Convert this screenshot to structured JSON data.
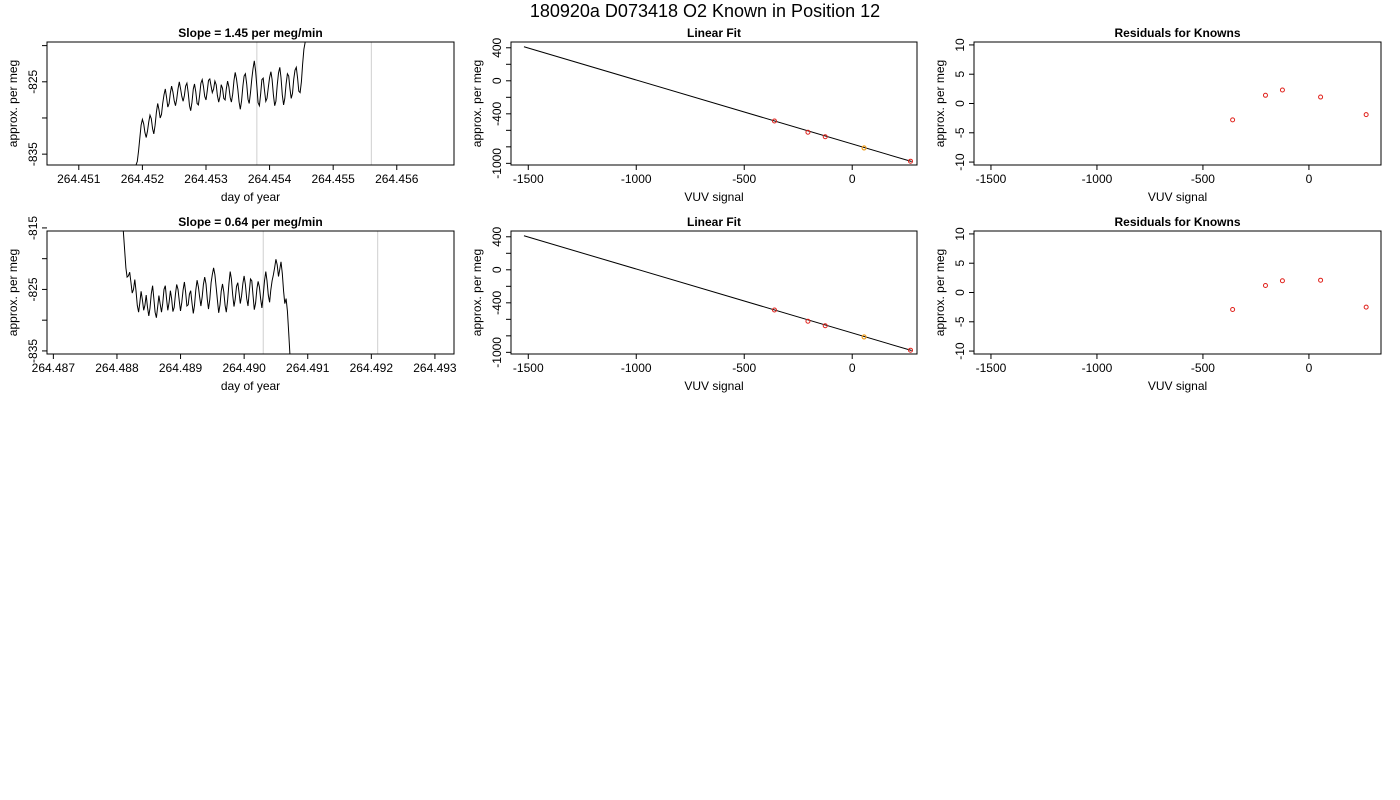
{
  "page_title": "180920a     D073418   O2 Known in Position  12",
  "chart_data": [
    {
      "id": "ts1",
      "type": "line",
      "title": "Slope =  1.45  per meg/min",
      "xlabel": "day of year",
      "ylabel": "approx. per meg",
      "xlim": [
        264.4505,
        264.4569
      ],
      "ylim": [
        -836.5,
        -819.5
      ],
      "x_ticks": [
        264.451,
        264.452,
        264.453,
        264.454,
        264.455,
        264.456
      ],
      "x_tick_labels": [
        "264.451",
        "264.452",
        "264.453",
        "264.454",
        "264.455",
        "264.456"
      ],
      "y_ticks": [
        -835,
        -830,
        -825,
        -820
      ],
      "y_tick_labels": [
        "-835",
        "",
        "-825",
        ""
      ],
      "vlines": [
        264.4538,
        264.4556
      ],
      "series_x_start": 264.4519,
      "series_x_step": 2e-05,
      "series_values": [
        -836.5,
        -836.0,
        -834.5,
        -832.8,
        -831.0,
        -830.2,
        -830.8,
        -832.0,
        -832.7,
        -831.8,
        -830.5,
        -829.6,
        -830.1,
        -831.5,
        -832.2,
        -831.0,
        -829.2,
        -828.0,
        -828.8,
        -830.0,
        -829.5,
        -828.0,
        -826.8,
        -826.0,
        -827.2,
        -828.5,
        -828.0,
        -826.5,
        -825.6,
        -826.4,
        -827.6,
        -828.3,
        -827.4,
        -826.0,
        -825.0,
        -825.9,
        -827.0,
        -827.7,
        -826.9,
        -825.6,
        -825.2,
        -826.5,
        -828.3,
        -829.0,
        -827.8,
        -826.0,
        -825.3,
        -826.4,
        -828.0,
        -828.2,
        -826.9,
        -825.2,
        -824.7,
        -825.6,
        -827.0,
        -827.5,
        -826.2,
        -824.8,
        -824.6,
        -825.6,
        -826.5,
        -826.0,
        -824.9,
        -825.4,
        -826.9,
        -827.8,
        -827.0,
        -825.4,
        -825.9,
        -827.3,
        -827.5,
        -826.0,
        -824.9,
        -825.7,
        -827.2,
        -827.8,
        -826.7,
        -824.8,
        -823.7,
        -824.6,
        -826.0,
        -827.8,
        -828.8,
        -827.6,
        -825.6,
        -824.2,
        -823.9,
        -825.3,
        -827.4,
        -828.0,
        -826.5,
        -824.6,
        -823.2,
        -822.1,
        -823.5,
        -825.7,
        -827.9,
        -828.3,
        -826.6,
        -824.7,
        -824.5,
        -826.2,
        -827.7,
        -827.3,
        -825.8,
        -824.4,
        -823.6,
        -824.7,
        -826.8,
        -828.3,
        -827.7,
        -825.5,
        -823.8,
        -823.0,
        -824.4,
        -826.8,
        -828.2,
        -827.3,
        -825.3,
        -823.9,
        -824.2,
        -825.9,
        -827.3,
        -826.6,
        -824.7,
        -823.4,
        -823.0,
        -824.5,
        -826.3,
        -826.5,
        -825.0,
        -822.6,
        -820.5,
        -819.5
      ]
    },
    {
      "id": "fit1",
      "type": "scatter",
      "title": "Linear Fit",
      "xlabel": "VUV signal",
      "ylabel": "approx. per meg",
      "xlim": [
        -1580,
        300
      ],
      "ylim": [
        -1020,
        470
      ],
      "x_ticks": [
        -1500,
        -1000,
        -500,
        0
      ],
      "x_tick_labels": [
        "-1500",
        "-1000",
        "-500",
        "0"
      ],
      "y_ticks": [
        -1000,
        -800,
        -600,
        -400,
        -200,
        0,
        200,
        400
      ],
      "y_tick_labels": [
        "-1000",
        "",
        "",
        "-400",
        "",
        "0",
        "",
        "400"
      ],
      "fit_line": [
        [
          -1520,
          412
        ],
        [
          275,
          -978
        ]
      ],
      "red_points": [
        [
          -360,
          -487
        ],
        [
          -205,
          -623
        ],
        [
          -125,
          -678
        ],
        [
          270,
          -974
        ]
      ],
      "orange_points": [
        [
          55,
          -813
        ]
      ]
    },
    {
      "id": "res1",
      "type": "scatter",
      "title": "Residuals for Knowns",
      "xlabel": "VUV signal",
      "ylabel": "approx. per meg",
      "xlim": [
        -1580,
        340
      ],
      "ylim": [
        -10.5,
        10.5
      ],
      "x_ticks": [
        -1500,
        -1000,
        -500,
        0
      ],
      "x_tick_labels": [
        "-1500",
        "-1000",
        "-500",
        "0"
      ],
      "y_ticks": [
        -10,
        -5,
        0,
        5,
        10
      ],
      "y_tick_labels": [
        "-10",
        "-5",
        "0",
        "5",
        "10"
      ],
      "red_points": [
        [
          -360,
          -2.8
        ],
        [
          -205,
          1.4
        ],
        [
          -125,
          2.3
        ],
        [
          55,
          1.1
        ],
        [
          270,
          -1.9
        ]
      ]
    },
    {
      "id": "ts2",
      "type": "line",
      "title": "Slope =  0.64  per meg/min",
      "xlabel": "day of year",
      "ylabel": "approx. per meg",
      "xlim": [
        264.4869,
        264.4933
      ],
      "ylim": [
        -835.5,
        -815.5
      ],
      "x_ticks": [
        264.487,
        264.488,
        264.489,
        264.49,
        264.491,
        264.492,
        264.493
      ],
      "x_tick_labels": [
        "264.487",
        "264.488",
        "264.489",
        "264.490",
        "264.491",
        "264.492",
        "264.493"
      ],
      "y_ticks": [
        -835,
        -830,
        -825,
        -820,
        -815
      ],
      "y_tick_labels": [
        "-835",
        "",
        "-825",
        "",
        "-815"
      ],
      "vlines": [
        264.4903,
        264.4921
      ],
      "series_x_start": 264.4881,
      "series_x_step": 2e-05,
      "series_values": [
        -815.5,
        -818.5,
        -821.5,
        -823.0,
        -822.8,
        -822.2,
        -823.8,
        -825.6,
        -825.0,
        -823.4,
        -825.2,
        -827.6,
        -828.7,
        -827.2,
        -825.3,
        -826.7,
        -828.4,
        -827.6,
        -825.9,
        -827.9,
        -829.3,
        -828.0,
        -825.7,
        -824.4,
        -826.4,
        -828.7,
        -829.6,
        -827.8,
        -826.0,
        -827.4,
        -828.7,
        -827.3,
        -825.0,
        -824.4,
        -826.6,
        -828.4,
        -827.1,
        -825.2,
        -826.5,
        -828.6,
        -827.9,
        -825.7,
        -824.2,
        -825.0,
        -826.9,
        -828.5,
        -827.1,
        -825.1,
        -823.8,
        -825.4,
        -827.7,
        -827.5,
        -825.8,
        -825.2,
        -827.2,
        -828.9,
        -827.6,
        -825.1,
        -823.5,
        -824.6,
        -826.2,
        -827.7,
        -826.2,
        -824.2,
        -823.0,
        -824.1,
        -826.6,
        -828.2,
        -826.6,
        -823.9,
        -822.6,
        -821.5,
        -822.6,
        -824.7,
        -826.7,
        -828.8,
        -827.5,
        -825.3,
        -824.1,
        -825.4,
        -827.6,
        -828.7,
        -826.8,
        -824.1,
        -822.1,
        -823.3,
        -825.9,
        -827.8,
        -826.6,
        -824.5,
        -823.9,
        -825.6,
        -827.3,
        -826.0,
        -824.0,
        -822.8,
        -824.2,
        -826.5,
        -827.7,
        -825.5,
        -823.3,
        -823.6,
        -825.9,
        -828.3,
        -827.2,
        -824.9,
        -823.7,
        -824.6,
        -826.6,
        -828.0,
        -826.0,
        -823.6,
        -822.1,
        -823.6,
        -825.9,
        -827.1,
        -825.1,
        -823.6,
        -822.6,
        -821.4,
        -820.1,
        -821.0,
        -822.9,
        -821.7,
        -820.5,
        -822.4,
        -825.3,
        -827.3,
        -826.5,
        -828.5,
        -832.0,
        -835.5
      ]
    },
    {
      "id": "fit2",
      "type": "scatter",
      "title": "Linear Fit",
      "xlabel": "VUV signal",
      "ylabel": "approx. per meg",
      "xlim": [
        -1580,
        300
      ],
      "ylim": [
        -1020,
        470
      ],
      "x_ticks": [
        -1500,
        -1000,
        -500,
        0
      ],
      "x_tick_labels": [
        "-1500",
        "-1000",
        "-500",
        "0"
      ],
      "y_ticks": [
        -1000,
        -800,
        -600,
        -400,
        -200,
        0,
        200,
        400
      ],
      "y_tick_labels": [
        "-1000",
        "",
        "",
        "-400",
        "",
        "0",
        "",
        "400"
      ],
      "fit_line": [
        [
          -1520,
          412
        ],
        [
          275,
          -978
        ]
      ],
      "red_points": [
        [
          -360,
          -487
        ],
        [
          -205,
          -623
        ],
        [
          -125,
          -678
        ],
        [
          270,
          -974
        ]
      ],
      "orange_points": [
        [
          55,
          -813
        ]
      ]
    },
    {
      "id": "res2",
      "type": "scatter",
      "title": "Residuals for Knowns",
      "xlabel": "VUV signal",
      "ylabel": "approx. per meg",
      "xlim": [
        -1580,
        340
      ],
      "ylim": [
        -10.5,
        10.5
      ],
      "x_ticks": [
        -1500,
        -1000,
        -500,
        0
      ],
      "x_tick_labels": [
        "-1500",
        "-1000",
        "-500",
        "0"
      ],
      "y_ticks": [
        -10,
        -5,
        0,
        5,
        10
      ],
      "y_tick_labels": [
        "-10",
        "-5",
        "0",
        "5",
        "10"
      ],
      "red_points": [
        [
          -360,
          -2.9
        ],
        [
          -205,
          1.2
        ],
        [
          -125,
          2.0
        ],
        [
          55,
          2.1
        ],
        [
          270,
          -2.5
        ]
      ]
    }
  ]
}
